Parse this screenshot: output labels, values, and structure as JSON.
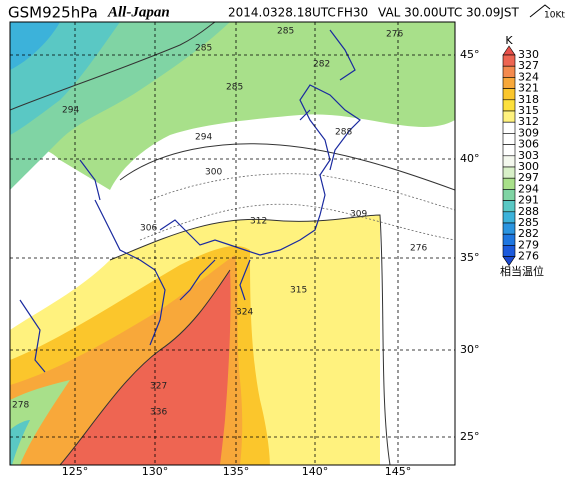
{
  "header": {
    "model": "GSM925hPa",
    "region": "All-Japan",
    "init": "2014.0328.18UTC",
    "forecast": "FH30",
    "valid": "VAL 30.00UTC",
    "valid_jst": "30.09JST",
    "barb_unit": "10Kt"
  },
  "colorbar": {
    "unit": "K",
    "caption": "相当温位",
    "labels": [
      330,
      327,
      324,
      321,
      318,
      315,
      312,
      309,
      306,
      303,
      300,
      297,
      294,
      291,
      288,
      285,
      282,
      279,
      276
    ],
    "colors": [
      "#e8504a",
      "#ee6552",
      "#f48a4e",
      "#f8a83a",
      "#fbc62c",
      "#fde03c",
      "#fff27e",
      "#ffffff",
      "#ffffff",
      "#ffffff",
      "#f4f8ee",
      "#d8f0c8",
      "#a8e08a",
      "#80d4a4",
      "#5ac8c4",
      "#3cb2da",
      "#2a94e0",
      "#1e76e0",
      "#1c5adc",
      "#1c4ad0"
    ]
  },
  "latitudes": [
    "45°",
    "40°",
    "35°",
    "30°",
    "25°"
  ],
  "longitudes": [
    "125°",
    "130°",
    "135°",
    "140°",
    "145°"
  ],
  "contour_labels": [
    "285",
    "285",
    "282",
    "276",
    "294",
    "285",
    "294",
    "300",
    "309",
    "312",
    "315",
    "324",
    "327",
    "336",
    "278",
    "276",
    "288",
    "306"
  ]
}
